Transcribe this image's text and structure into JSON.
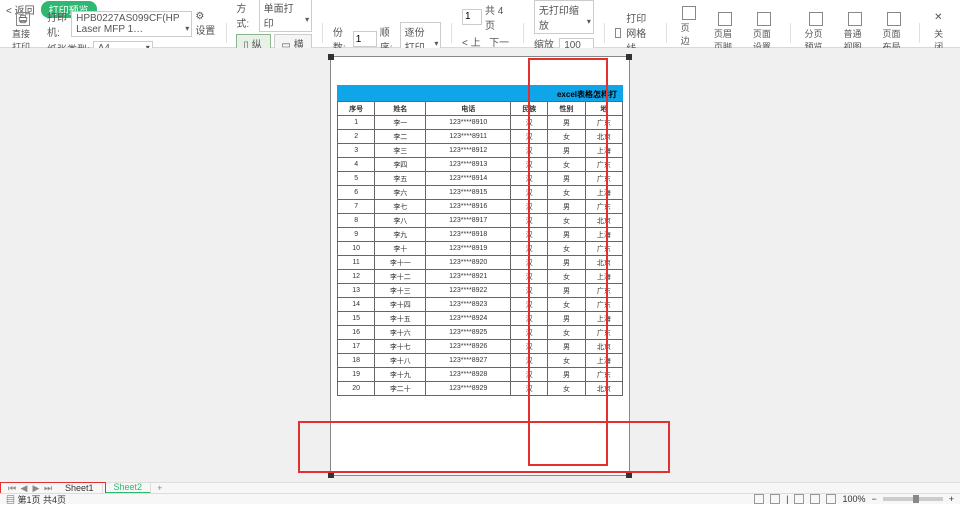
{
  "titlebar": {
    "back": "< 返回",
    "badge": "打印预览"
  },
  "toolbar1": {
    "printer_label": "打印机:",
    "printer_value": "HPB0227AS099CF(HP Laser MFP 1…",
    "settings": "设置",
    "mode_label": "方式:",
    "mode_value": "单面打印",
    "page_num": "1",
    "page_total_label": "共 4 页",
    "no_print_line": "无打印缩放",
    "chk_grid": "打印网格线",
    "btn_pagearea": "页边距",
    "btn_header": "页眉页脚",
    "btn_pagesetup": "页面设置",
    "btn_pagebreak": "分页预览",
    "btn_normal": "普通视图",
    "btn_layout": "页面布局",
    "btn_close": "关闭"
  },
  "toolbar2": {
    "direct_print": "直接打印",
    "paper_label": "纸张类型:",
    "paper_value": "A4",
    "portrait": "纵向",
    "landscape": "横向",
    "copies_label": "份数:",
    "copies_value": "1",
    "order_label": "顺序:",
    "order_value": "逐份打印",
    "prev": "< 上一页",
    "next": "下一页 >",
    "scale_label": "缩放比例",
    "scale_value": "100 %"
  },
  "page": {
    "title": "excel表格怎样打",
    "headers": [
      "序号",
      "姓名",
      "电话",
      "民族",
      "性别",
      "地"
    ],
    "rows": [
      [
        "1",
        "李一",
        "123****8910",
        "汉",
        "男",
        "广东"
      ],
      [
        "2",
        "李二",
        "123****8911",
        "汉",
        "女",
        "北京"
      ],
      [
        "3",
        "李三",
        "123****8912",
        "汉",
        "男",
        "上海"
      ],
      [
        "4",
        "李四",
        "123****8913",
        "汉",
        "女",
        "广东"
      ],
      [
        "5",
        "李五",
        "123****8914",
        "汉",
        "男",
        "广东"
      ],
      [
        "6",
        "李六",
        "123****8915",
        "汉",
        "女",
        "上海"
      ],
      [
        "7",
        "李七",
        "123****8916",
        "汉",
        "男",
        "广东"
      ],
      [
        "8",
        "李八",
        "123****8917",
        "汉",
        "女",
        "北京"
      ],
      [
        "9",
        "李九",
        "123****8918",
        "汉",
        "男",
        "上海"
      ],
      [
        "10",
        "李十",
        "123****8919",
        "汉",
        "女",
        "广东"
      ],
      [
        "11",
        "李十一",
        "123****8920",
        "汉",
        "男",
        "北京"
      ],
      [
        "12",
        "李十二",
        "123****8921",
        "汉",
        "女",
        "上海"
      ],
      [
        "13",
        "李十三",
        "123****8922",
        "汉",
        "男",
        "广东"
      ],
      [
        "14",
        "李十四",
        "123****8923",
        "汉",
        "女",
        "广东"
      ],
      [
        "15",
        "李十五",
        "123****8924",
        "汉",
        "男",
        "上海"
      ],
      [
        "16",
        "李十六",
        "123****8925",
        "汉",
        "女",
        "广东"
      ],
      [
        "17",
        "李十七",
        "123****8926",
        "汉",
        "男",
        "北京"
      ],
      [
        "18",
        "李十八",
        "123****8927",
        "汉",
        "女",
        "上海"
      ],
      [
        "19",
        "李十九",
        "123****8928",
        "汉",
        "男",
        "广东"
      ],
      [
        "20",
        "李二十",
        "123****8929",
        "汉",
        "女",
        "北京"
      ]
    ]
  },
  "sheets": {
    "s1": "Sheet1",
    "s2": "Sheet2"
  },
  "status": {
    "page_info": "第1页 共4页",
    "zoom": "100%"
  },
  "colors": {
    "accent": "#2eb872",
    "header_bg": "#0ea5e9",
    "red": "#e03030"
  }
}
